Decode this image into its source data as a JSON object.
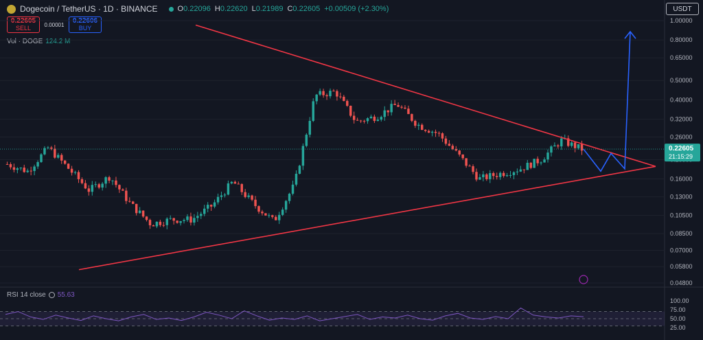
{
  "header": {
    "symbol": "Dogecoin / TetherUS · 1D · BINANCE",
    "ohlc": [
      {
        "k": "O",
        "v": "0.22096"
      },
      {
        "k": "H",
        "v": "0.22620"
      },
      {
        "k": "L",
        "v": "0.21989"
      },
      {
        "k": "C",
        "v": "0.22605"
      }
    ],
    "change": "+0.00509 (+2.30%)",
    "currency": "USDT"
  },
  "trade": {
    "sell_price": "0.22605",
    "sell_label": "SELL",
    "spread": "0.00001",
    "buy_price": "0.22606",
    "buy_label": "BUY"
  },
  "volume": {
    "label": "Vol · DOGE",
    "value": "124.2 M"
  },
  "rsi": {
    "label": "RSI 14 close",
    "value": "55.63"
  },
  "colors": {
    "up": "#26a69a",
    "down": "#ef5350",
    "pattern": "#f23645",
    "projection": "#2962ff",
    "rsi": "#7e57c2"
  },
  "chart_data": {
    "type": "line",
    "price_axis": {
      "scale": "log",
      "ticks": [
        "1.00000",
        "0.80000",
        "0.65000",
        "0.50000",
        "0.40000",
        "0.32000",
        "0.26000",
        "0.20000",
        "0.16000",
        "0.13000",
        "0.10500",
        "0.08500",
        "0.07000",
        "0.05800",
        "0.04800"
      ],
      "current_price": "0.22605",
      "countdown": "21:15:29"
    },
    "price_path": [
      0.19,
      0.175,
      0.23,
      0.18,
      0.14,
      0.165,
      0.12,
      0.095,
      0.1,
      0.1,
      0.118,
      0.155,
      0.12,
      0.098,
      0.15,
      0.42,
      0.44,
      0.31,
      0.33,
      0.38,
      0.3,
      0.27,
      0.21,
      0.16,
      0.17,
      0.18,
      0.2,
      0.25,
      0.226
    ],
    "triangle": {
      "upper": [
        [
          0.0,
          0.95
        ],
        [
          1.0,
          0.185
        ]
      ],
      "lower": [
        [
          0.0,
          0.056
        ],
        [
          1.0,
          0.185
        ]
      ]
    },
    "projection": [
      0.226,
      0.175,
      0.215,
      0.18,
      0.88
    ],
    "rsi_axis": {
      "ticks": [
        "100.00",
        "75.00",
        "50.00",
        "25.00"
      ],
      "upper_band": 70,
      "lower_band": 30
    },
    "rsi_values": [
      62,
      70,
      55,
      48,
      60,
      52,
      45,
      58,
      50,
      44,
      55,
      62,
      48,
      52,
      45,
      55,
      68,
      60,
      50,
      72,
      58,
      46,
      52,
      48,
      58,
      44,
      50,
      56,
      62,
      48,
      55,
      52,
      60,
      50,
      46,
      58,
      65,
      52,
      48,
      56,
      50,
      80,
      60,
      55,
      52,
      58,
      55.63
    ]
  }
}
